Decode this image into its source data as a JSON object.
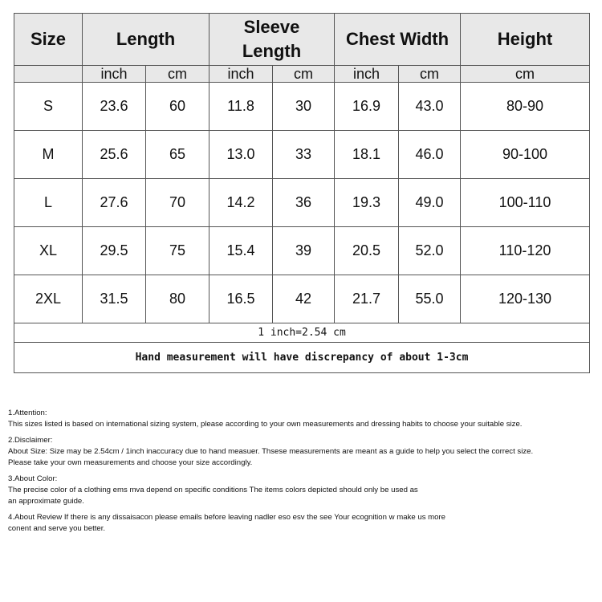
{
  "table": {
    "headers": [
      "Size",
      "Length",
      "Sleeve Length",
      "Chest Width",
      "Height"
    ],
    "units": [
      "",
      "inch",
      "cm",
      "inch",
      "cm",
      "inch",
      "cm",
      "cm"
    ],
    "rows": [
      [
        "S",
        "23.6",
        "60",
        "11.8",
        "30",
        "16.9",
        "43.0",
        "80-90"
      ],
      [
        "M",
        "25.6",
        "65",
        "13.0",
        "33",
        "18.1",
        "46.0",
        "90-100"
      ],
      [
        "L",
        "27.6",
        "70",
        "14.2",
        "36",
        "19.3",
        "49.0",
        "100-110"
      ],
      [
        "XL",
        "29.5",
        "75",
        "15.4",
        "39",
        "20.5",
        "52.0",
        "110-120"
      ],
      [
        "2XL",
        "31.5",
        "80",
        "16.5",
        "42",
        "21.7",
        "55.0",
        "120-130"
      ]
    ],
    "conversion": "1 inch=2.54 cm",
    "discrepancy": "Hand measurement will have discrepancy of about 1-3cm"
  },
  "notes": [
    {
      "title": "1.Attention:",
      "lines": [
        "This sizes listed is based on international sizing system, please according to your own measurements and dressing habits to choose your suitable size."
      ]
    },
    {
      "title": "2.Disclaimer:",
      "lines": [
        "About Size: Size may be 2.54cm / 1inch inaccuracy due to hand measuer. Thsese measurements are meant as a guide to help you select the correct size.",
        "Please take your own measurements and choose your size accordingly."
      ]
    },
    {
      "title": "3.About Color:",
      "lines": [
        "The precise color of a clothing ems mva depend on specific conditions The items colors depicted should only be used as",
        "an approximate guide."
      ]
    },
    {
      "title": "",
      "lines": [
        "4.About Review If there is any dissaisacon please emails before leaving nadler eso esv the see Your ecognition w make us more",
        "conent and serve you better."
      ]
    }
  ]
}
